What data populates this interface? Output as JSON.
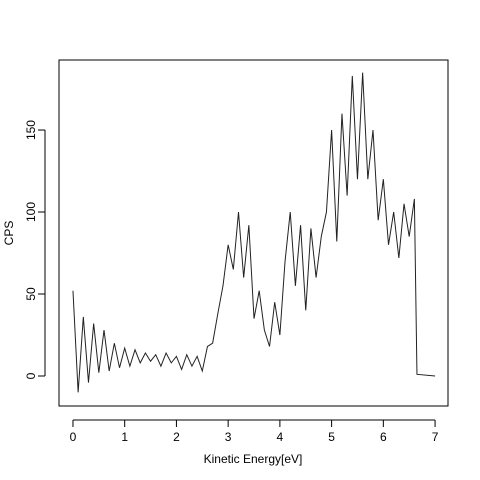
{
  "chart_data": {
    "type": "line",
    "x_label": "Kinetic Energy[eV]",
    "y_label": "CPS",
    "x": [
      0,
      0.1,
      0.2,
      0.3,
      0.4,
      0.5,
      0.6,
      0.7,
      0.8,
      0.9,
      1.0,
      1.1,
      1.2,
      1.3,
      1.4,
      1.5,
      1.6,
      1.7,
      1.8,
      1.9,
      2.0,
      2.1,
      2.2,
      2.3,
      2.4,
      2.5,
      2.6,
      2.7,
      2.8,
      2.9,
      3.0,
      3.1,
      3.2,
      3.3,
      3.4,
      3.5,
      3.6,
      3.7,
      3.8,
      3.9,
      4.0,
      4.1,
      4.2,
      4.3,
      4.4,
      4.5,
      4.6,
      4.7,
      4.8,
      4.9,
      5.0,
      5.1,
      5.2,
      5.3,
      5.4,
      5.5,
      5.6,
      5.7,
      5.8,
      5.9,
      6.0,
      6.1,
      6.2,
      6.3,
      6.4,
      6.5,
      6.6,
      6.65,
      7.0
    ],
    "series": [
      {
        "name": "CPS",
        "color": "#222222",
        "values": [
          52,
          -10,
          36,
          -4,
          32,
          2,
          28,
          3,
          20,
          5,
          17,
          6,
          16,
          8,
          14,
          9,
          13,
          6,
          14,
          8,
          12,
          4,
          13,
          6,
          12,
          3,
          18,
          20,
          38,
          55,
          80,
          65,
          100,
          60,
          92,
          35,
          52,
          28,
          18,
          45,
          25,
          70,
          100,
          55,
          92,
          40,
          90,
          60,
          85,
          100,
          150,
          82,
          160,
          110,
          183,
          120,
          185,
          120,
          150,
          95,
          120,
          80,
          100,
          72,
          105,
          85,
          108,
          1,
          0
        ]
      }
    ],
    "xlim": [
      -0.27,
      7.25
    ],
    "ylim": [
      -18.3,
      192.7
    ],
    "xticks": [
      0,
      1,
      2,
      3,
      4,
      5,
      6,
      7
    ],
    "yticks": [
      0,
      50,
      100,
      150
    ]
  }
}
